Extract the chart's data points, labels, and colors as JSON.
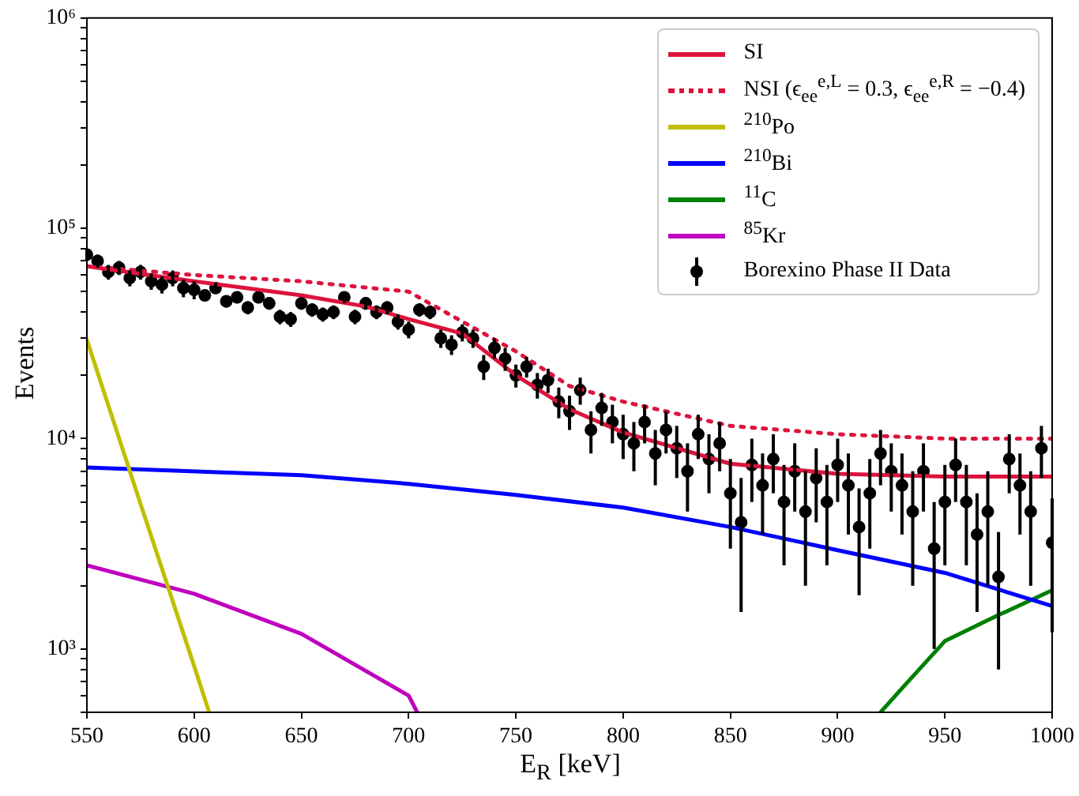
{
  "chart_data": {
    "type": "line",
    "xlabel": "E$_{R}$ [keV]",
    "ylabel": "Events",
    "log": "y",
    "legend": "top right",
    "grid": false,
    "xlim": [
      550,
      1000
    ],
    "xticks": [
      550,
      600,
      650,
      700,
      750,
      800,
      850,
      900,
      950,
      1000
    ],
    "ylim": [
      500,
      1000000
    ],
    "yticks": [
      {
        "value": 500,
        "label": null
      },
      {
        "value": 600,
        "label": null
      },
      {
        "value": 700,
        "label": null
      },
      {
        "value": 800,
        "label": null
      },
      {
        "value": 900,
        "label": null
      },
      {
        "value": 1000,
        "label": "10³"
      },
      {
        "value": 2000,
        "label": null
      },
      {
        "value": 3000,
        "label": null
      },
      {
        "value": 4000,
        "label": null
      },
      {
        "value": 5000,
        "label": null
      },
      {
        "value": 6000,
        "label": null
      },
      {
        "value": 7000,
        "label": null
      },
      {
        "value": 8000,
        "label": null
      },
      {
        "value": 9000,
        "label": null
      },
      {
        "value": 10000,
        "label": "10⁴"
      },
      {
        "value": 20000,
        "label": null
      },
      {
        "value": 30000,
        "label": null
      },
      {
        "value": 40000,
        "label": null
      },
      {
        "value": 50000,
        "label": null
      },
      {
        "value": 60000,
        "label": null
      },
      {
        "value": 70000,
        "label": null
      },
      {
        "value": 80000,
        "label": null
      },
      {
        "value": 90000,
        "label": null
      },
      {
        "value": 100000,
        "label": "10⁵"
      },
      {
        "value": 200000,
        "label": null
      },
      {
        "value": 300000,
        "label": null
      },
      {
        "value": 400000,
        "label": null
      },
      {
        "value": 500000,
        "label": null
      },
      {
        "value": 600000,
        "label": null
      },
      {
        "value": 700000,
        "label": null
      },
      {
        "value": 800000,
        "label": null
      },
      {
        "value": 900000,
        "label": null
      },
      {
        "value": 1000000,
        "label": "10⁶"
      }
    ],
    "series": [
      {
        "name": "SI",
        "color": "#dc143c",
        "line_style": "solid",
        "x": [
          550,
          600,
          650,
          680,
          700,
          725,
          750,
          775,
          800,
          850,
          900,
          950,
          1000
        ],
        "values": [
          66000,
          56000,
          48000,
          42500,
          37000,
          31600,
          20000,
          13800,
          10700,
          7600,
          6800,
          6600,
          6600
        ]
      },
      {
        "name": "NSI (ϵ$_{ee}$$^{e,L}$ = 0.3, ϵ$_{ee}$$^{e,R}$ = −0.4)",
        "color": "#dc143c",
        "line_style": "dotted",
        "x": [
          550,
          600,
          650,
          700,
          750,
          775,
          800,
          850,
          900,
          950,
          1000
        ],
        "values": [
          66000,
          60000,
          56000,
          50000,
          26000,
          17800,
          15000,
          11500,
          10500,
          10000,
          10000
        ]
      },
      {
        "name": "$^{210}$Po",
        "color": "#bfbf00",
        "line_style": "solid",
        "x": [
          550,
          575,
          600,
          607
        ],
        "values": [
          29500,
          4900,
          830,
          500
        ]
      },
      {
        "name": "$^{210}$Bi",
        "color": "#0000ff",
        "line_style": "solid",
        "x": [
          550,
          650,
          700,
          750,
          800,
          850,
          900,
          950,
          1000
        ],
        "values": [
          7300,
          6700,
          6100,
          5400,
          4700,
          3800,
          2950,
          2300,
          1600
        ]
      },
      {
        "name": "$^{11}$C",
        "color": "#008000",
        "line_style": "solid",
        "x": [
          920,
          930,
          950,
          975,
          1000
        ],
        "values": [
          500,
          650,
          1090,
          1450,
          1900
        ]
      },
      {
        "name": "$^{85}$Kr",
        "color": "#bf00bf",
        "line_style": "solid",
        "x": [
          550,
          600,
          650,
          700,
          704
        ],
        "values": [
          2500,
          1830,
          1180,
          600,
          500
        ]
      },
      {
        "name": "Borexino Phase II Data",
        "type": "scatter",
        "color": "#000000",
        "marker": "circle",
        "x": [
          550,
          555,
          560,
          565,
          570,
          575,
          580,
          585,
          590,
          595,
          600,
          605,
          610,
          615,
          620,
          625,
          630,
          635,
          640,
          645,
          650,
          655,
          660,
          665,
          670,
          675,
          680,
          685,
          690,
          695,
          700,
          705,
          710,
          715,
          720,
          725,
          730,
          735,
          740,
          745,
          750,
          755,
          760,
          765,
          770,
          775,
          780,
          785,
          790,
          795,
          800,
          805,
          810,
          815,
          820,
          825,
          830,
          835,
          840,
          845,
          850,
          855,
          860,
          865,
          870,
          875,
          880,
          885,
          890,
          895,
          900,
          905,
          910,
          915,
          920,
          925,
          930,
          935,
          940,
          945,
          950,
          955,
          960,
          965,
          970,
          975,
          980,
          985,
          990,
          995,
          1000
        ],
        "values": [
          75000,
          70000,
          62000,
          65000,
          58000,
          62000,
          56000,
          54000,
          58000,
          52000,
          51000,
          48000,
          52000,
          45000,
          47000,
          42000,
          47000,
          44000,
          38000,
          37000,
          44000,
          41000,
          39000,
          40000,
          47000,
          38000,
          44000,
          40000,
          42000,
          36000,
          33000,
          41000,
          40000,
          30000,
          28000,
          32000,
          30000,
          22000,
          27000,
          24000,
          20000,
          22000,
          18000,
          19000,
          15000,
          13500,
          17000,
          11000,
          14000,
          12000,
          10500,
          9500,
          12000,
          8500,
          11000,
          9000,
          7000,
          10500,
          8000,
          9500,
          5500,
          4000,
          7500,
          6000,
          8000,
          5000,
          7000,
          4500,
          6500,
          5000,
          7500,
          6000,
          3800,
          5500,
          8500,
          7000,
          6000,
          4500,
          7000,
          3000,
          5000,
          7500,
          5000,
          3500,
          4500,
          2200,
          8000,
          6000,
          4500,
          9000,
          3200
        ],
        "errors": [
          5000,
          5000,
          5000,
          5000,
          5000,
          5000,
          5000,
          5000,
          5000,
          5000,
          5000,
          3000,
          3000,
          3000,
          3000,
          3000,
          3000,
          3000,
          3000,
          3000,
          3000,
          3000,
          3000,
          3000,
          3000,
          3000,
          3000,
          3000,
          3000,
          3000,
          3000,
          3000,
          3000,
          3000,
          3000,
          3000,
          3000,
          3000,
          3000,
          3000,
          2500,
          2500,
          2500,
          2500,
          2500,
          2500,
          2500,
          2500,
          2500,
          2500,
          2500,
          2500,
          2500,
          2500,
          2500,
          2500,
          2500,
          2500,
          2500,
          2500,
          2500,
          2500,
          2500,
          2500,
          2500,
          2500,
          2500,
          2500,
          2500,
          2500,
          2500,
          2500,
          2000,
          2500,
          2500,
          2500,
          2500,
          2500,
          2500,
          2000,
          2500,
          2500,
          2500,
          2000,
          2500,
          1400,
          2500,
          2500,
          2500,
          2500,
          2000
        ]
      }
    ]
  }
}
